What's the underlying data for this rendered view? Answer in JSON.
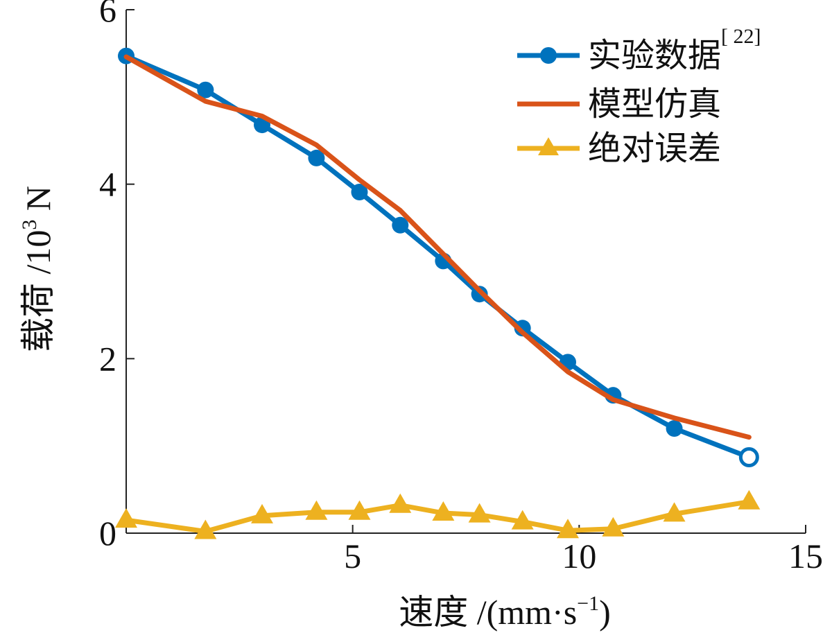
{
  "chart_data": {
    "type": "line",
    "title": "",
    "xlabel": "速度 /(mm·s",
    "xlabel_sup": "−1",
    "xlabel_close": ")",
    "ylabel": "载荷 /10",
    "ylabel_sup": "3",
    "ylabel_unit": " N",
    "xlim": [
      0,
      15
    ],
    "ylim": [
      0,
      6
    ],
    "xticks": [
      5,
      10,
      15
    ],
    "yticks": [
      0,
      2,
      4,
      6
    ],
    "xtick_labels": [
      "5",
      "10",
      "15"
    ],
    "ytick_labels": [
      "0",
      "2",
      "4",
      "6"
    ],
    "grid": false,
    "legend_position": "top-right",
    "series": [
      {
        "name": "实验数据",
        "name_sup": "[ 22]",
        "color": "#0072BD",
        "marker": "circle",
        "x": [
          0.0,
          1.75,
          3.0,
          4.2,
          5.15,
          6.05,
          7.0,
          7.8,
          8.75,
          9.75,
          10.75,
          12.1,
          13.75
        ],
        "y": [
          5.47,
          5.08,
          4.68,
          4.3,
          3.91,
          3.53,
          3.12,
          2.74,
          2.35,
          1.96,
          1.58,
          1.2,
          0.87
        ]
      },
      {
        "name": "模型仿真",
        "color": "#D95319",
        "marker": "none",
        "x": [
          0.0,
          1.75,
          3.0,
          4.2,
          5.15,
          6.05,
          7.0,
          7.8,
          8.75,
          9.75,
          10.75,
          12.1,
          13.75
        ],
        "y": [
          5.46,
          4.95,
          4.78,
          4.45,
          4.05,
          3.7,
          3.2,
          2.78,
          2.3,
          1.85,
          1.53,
          1.32,
          1.1
        ]
      },
      {
        "name": "绝对误差",
        "color": "#EDB120",
        "marker": "triangle",
        "x": [
          0.0,
          1.75,
          3.0,
          4.2,
          5.15,
          6.05,
          7.0,
          7.8,
          8.75,
          9.75,
          10.75,
          12.1,
          13.75
        ],
        "y": [
          0.15,
          0.02,
          0.2,
          0.24,
          0.24,
          0.32,
          0.23,
          0.21,
          0.13,
          0.03,
          0.05,
          0.22,
          0.36
        ]
      }
    ]
  }
}
